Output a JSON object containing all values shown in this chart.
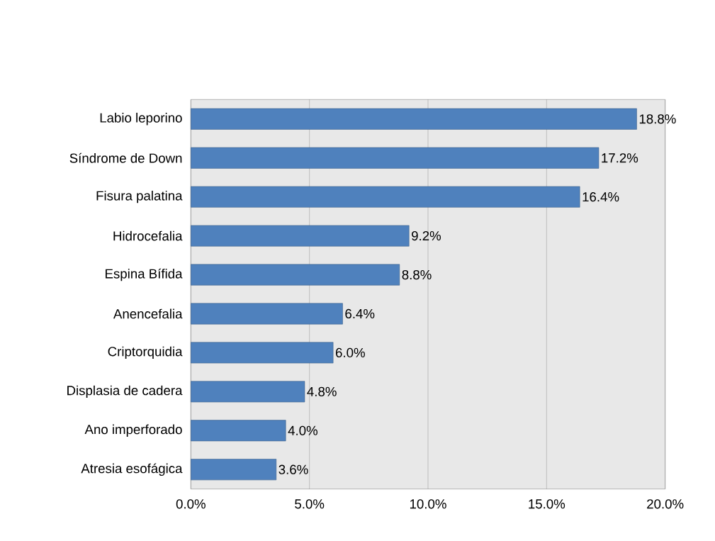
{
  "chart_data": {
    "type": "bar",
    "orientation": "horizontal",
    "categories": [
      "Labio leporino",
      "Síndrome de Down",
      "Fisura palatina",
      "Hidrocefalia",
      "Espina Bífida",
      "Anencefalia",
      "Criptorquidia",
      "Displasia de cadera",
      "Ano imperforado",
      "Atresia esofágica"
    ],
    "values": [
      18.8,
      17.2,
      16.4,
      9.2,
      8.8,
      6.4,
      6.0,
      4.8,
      4.0,
      3.6
    ],
    "value_labels": [
      "18.8%",
      "17.2%",
      "16.4%",
      "9.2%",
      "8.8%",
      "6.4%",
      "6.0%",
      "4.8%",
      "4.0%",
      "3.6%"
    ],
    "color": "#4f81bd",
    "xlim": [
      0,
      20
    ],
    "xticks": [
      {
        "value": 0,
        "label": "0.0%"
      },
      {
        "value": 5,
        "label": "5.0%"
      },
      {
        "value": 10,
        "label": "10.0%"
      },
      {
        "value": 15,
        "label": "15.0%"
      },
      {
        "value": 20,
        "label": "20.0%"
      }
    ],
    "grid": "x"
  }
}
